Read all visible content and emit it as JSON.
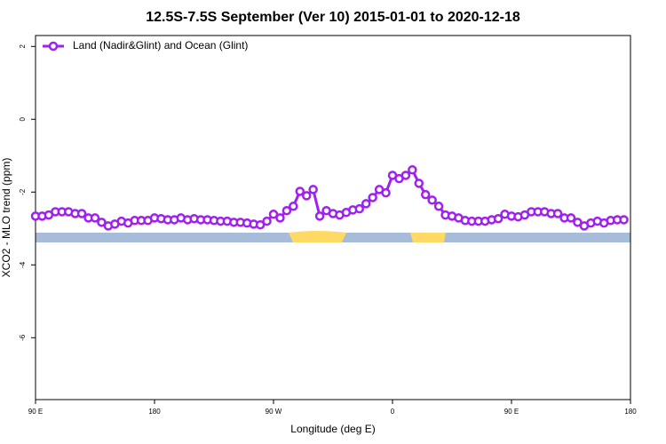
{
  "chart_data": {
    "type": "line",
    "title": "12.5S-7.5S September (Ver 10)   2015-01-01 to 2020-12-18",
    "x_label": "Longitude (deg E)",
    "y_label": "XCO2 - MLO trend (ppm)",
    "legend_loc": "upper left",
    "xlim": [
      -270,
      180
    ],
    "xticks": [
      {
        "value": -270,
        "label": "90 E"
      },
      {
        "value": -180,
        "label": "180"
      },
      {
        "value": -90,
        "label": "90 W"
      },
      0,
      {
        "value": 90,
        "label": "90 E"
      },
      {
        "value": 180,
        "label": "180"
      }
    ],
    "ylim": [
      -7.7,
      2.3
    ],
    "yticks": [
      2,
      0,
      -2,
      -4,
      -6
    ],
    "series": [
      {
        "name": "Land (Nadir&Glint) and Ocean (Glint)",
        "color": "#a020f0",
        "x": [
          -270,
          -265,
          -260,
          -255,
          -250,
          -245,
          -240,
          -235,
          -230,
          -225,
          -220,
          -215,
          -210,
          -205,
          -200,
          -195,
          -190,
          -185,
          -180,
          -175,
          -170,
          -165,
          -160,
          -155,
          -150,
          -145,
          -140,
          -135,
          -130,
          -125,
          -120,
          -115,
          -110,
          -105,
          -100,
          -95,
          -90,
          -85,
          -80,
          -75,
          -70,
          -65,
          -60,
          -55,
          -50,
          -45,
          -40,
          -35,
          -30,
          -25,
          -20,
          -15,
          -10,
          -5,
          0,
          5,
          10,
          15,
          20,
          25,
          30,
          35,
          40,
          45,
          50,
          55,
          60,
          65,
          70,
          75,
          80,
          85,
          90,
          95,
          100,
          105,
          110,
          115,
          120,
          125,
          130,
          135,
          140,
          145,
          150,
          155,
          160,
          165,
          170,
          175
        ],
        "values": [
          -2.66,
          -2.66,
          -2.63,
          -2.54,
          -2.54,
          -2.54,
          -2.59,
          -2.59,
          -2.71,
          -2.71,
          -2.83,
          -2.93,
          -2.88,
          -2.8,
          -2.85,
          -2.78,
          -2.78,
          -2.78,
          -2.71,
          -2.73,
          -2.76,
          -2.76,
          -2.71,
          -2.76,
          -2.73,
          -2.76,
          -2.76,
          -2.78,
          -2.8,
          -2.8,
          -2.83,
          -2.83,
          -2.85,
          -2.88,
          -2.9,
          -2.8,
          -2.61,
          -2.71,
          -2.51,
          -2.39,
          -1.98,
          -2.1,
          -1.93,
          -2.66,
          -2.51,
          -2.59,
          -2.63,
          -2.56,
          -2.49,
          -2.46,
          -2.32,
          -2.15,
          -1.93,
          -2.02,
          -1.54,
          -1.63,
          -1.54,
          -1.39,
          -1.76,
          -2.07,
          -2.22,
          -2.39,
          -2.63,
          -2.66,
          -2.71,
          -2.78,
          -2.8,
          -2.8,
          -2.8,
          -2.76,
          -2.73,
          -2.61,
          -2.66,
          -2.68,
          -2.63,
          -2.54,
          -2.54,
          -2.54,
          -2.59,
          -2.59,
          -2.71,
          -2.71,
          -2.83,
          -2.93,
          -2.85,
          -2.8,
          -2.85,
          -2.78,
          -2.76,
          -2.76
        ]
      }
    ]
  }
}
